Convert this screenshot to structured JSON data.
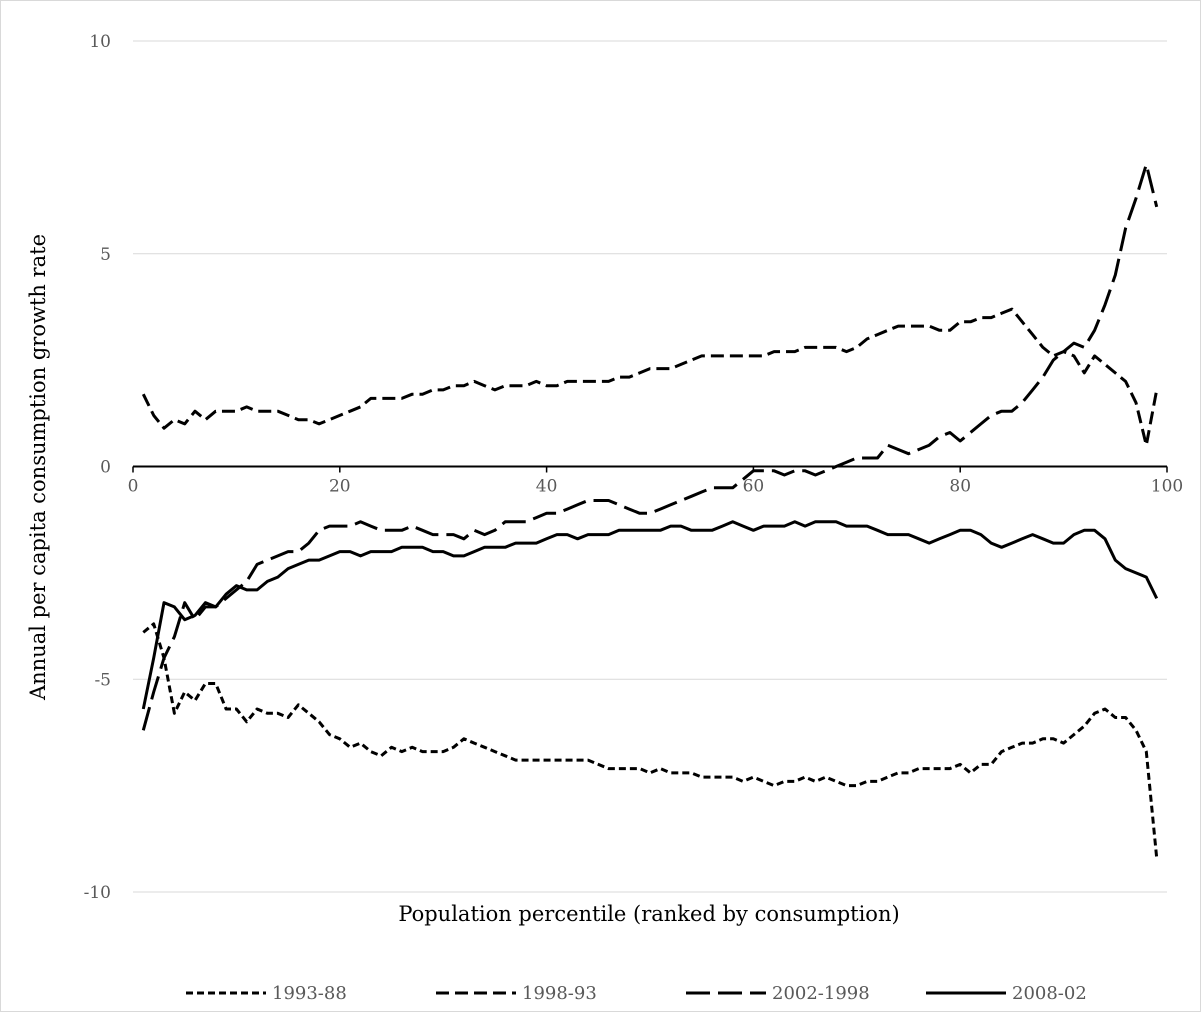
{
  "chart_data": {
    "type": "line",
    "title": "",
    "xlabel": "Population percentile (ranked by consumption)",
    "ylabel": "Annual per capita consumption growth rate",
    "xlim": [
      0,
      100
    ],
    "ylim": [
      -10,
      10
    ],
    "x_ticks": [
      0,
      20,
      40,
      60,
      80,
      100
    ],
    "y_ticks": [
      -10,
      -5,
      0,
      5,
      10
    ],
    "grid": "horizontal",
    "legend_position": "bottom",
    "series": [
      {
        "name": "1993-88",
        "dash": "short",
        "x": [
          1,
          2,
          3,
          4,
          5,
          6,
          7,
          8,
          9,
          10,
          11,
          12,
          13,
          14,
          15,
          16,
          17,
          18,
          19,
          20,
          21,
          22,
          23,
          24,
          25,
          26,
          27,
          28,
          29,
          30,
          31,
          32,
          33,
          34,
          35,
          36,
          37,
          38,
          39,
          40,
          41,
          42,
          43,
          44,
          45,
          46,
          47,
          48,
          49,
          50,
          51,
          52,
          53,
          54,
          55,
          56,
          57,
          58,
          59,
          60,
          61,
          62,
          63,
          64,
          65,
          66,
          67,
          68,
          69,
          70,
          71,
          72,
          73,
          74,
          75,
          76,
          77,
          78,
          79,
          80,
          81,
          82,
          83,
          84,
          85,
          86,
          87,
          88,
          89,
          90,
          91,
          92,
          93,
          94,
          95,
          96,
          97,
          98,
          99
        ],
        "values": [
          -3.9,
          -3.7,
          -4.5,
          -5.8,
          -5.3,
          -5.5,
          -5.1,
          -5.1,
          -5.7,
          -5.7,
          -6.0,
          -5.7,
          -5.8,
          -5.8,
          -5.9,
          -5.6,
          -5.8,
          -6.0,
          -6.3,
          -6.4,
          -6.6,
          -6.5,
          -6.7,
          -6.8,
          -6.6,
          -6.7,
          -6.6,
          -6.7,
          -6.7,
          -6.7,
          -6.6,
          -6.4,
          -6.5,
          -6.6,
          -6.7,
          -6.8,
          -6.9,
          -6.9,
          -6.9,
          -6.9,
          -6.9,
          -6.9,
          -6.9,
          -6.9,
          -7.0,
          -7.1,
          -7.1,
          -7.1,
          -7.1,
          -7.2,
          -7.1,
          -7.2,
          -7.2,
          -7.2,
          -7.3,
          -7.3,
          -7.3,
          -7.3,
          -7.4,
          -7.3,
          -7.4,
          -7.5,
          -7.4,
          -7.4,
          -7.3,
          -7.4,
          -7.3,
          -7.4,
          -7.5,
          -7.5,
          -7.4,
          -7.4,
          -7.3,
          -7.2,
          -7.2,
          -7.1,
          -7.1,
          -7.1,
          -7.1,
          -7.0,
          -7.2,
          -7.0,
          -7.0,
          -6.7,
          -6.6,
          -6.5,
          -6.5,
          -6.4,
          -6.4,
          -6.5,
          -6.3,
          -6.1,
          -5.8,
          -5.7,
          -5.9,
          -5.9,
          -6.2,
          -6.7,
          -9.2
        ]
      },
      {
        "name": "1998-93",
        "dash": "medium",
        "x": [
          1,
          2,
          3,
          4,
          5,
          6,
          7,
          8,
          9,
          10,
          11,
          12,
          13,
          14,
          15,
          16,
          17,
          18,
          19,
          20,
          21,
          22,
          23,
          24,
          25,
          26,
          27,
          28,
          29,
          30,
          31,
          32,
          33,
          34,
          35,
          36,
          37,
          38,
          39,
          40,
          41,
          42,
          43,
          44,
          45,
          46,
          47,
          48,
          49,
          50,
          51,
          52,
          53,
          54,
          55,
          56,
          57,
          58,
          59,
          60,
          61,
          62,
          63,
          64,
          65,
          66,
          67,
          68,
          69,
          70,
          71,
          72,
          73,
          74,
          75,
          76,
          77,
          78,
          79,
          80,
          81,
          82,
          83,
          84,
          85,
          86,
          87,
          88,
          89,
          90,
          91,
          92,
          93,
          94,
          95,
          96,
          97,
          98,
          99
        ],
        "values": [
          1.7,
          1.2,
          0.9,
          1.1,
          1.0,
          1.3,
          1.1,
          1.3,
          1.3,
          1.3,
          1.4,
          1.3,
          1.3,
          1.3,
          1.2,
          1.1,
          1.1,
          1.0,
          1.1,
          1.2,
          1.3,
          1.4,
          1.6,
          1.6,
          1.6,
          1.6,
          1.7,
          1.7,
          1.8,
          1.8,
          1.9,
          1.9,
          2.0,
          1.9,
          1.8,
          1.9,
          1.9,
          1.9,
          2.0,
          1.9,
          1.9,
          2.0,
          2.0,
          2.0,
          2.0,
          2.0,
          2.1,
          2.1,
          2.2,
          2.3,
          2.3,
          2.3,
          2.4,
          2.5,
          2.6,
          2.6,
          2.6,
          2.6,
          2.6,
          2.6,
          2.6,
          2.7,
          2.7,
          2.7,
          2.8,
          2.8,
          2.8,
          2.8,
          2.7,
          2.8,
          3.0,
          3.1,
          3.2,
          3.3,
          3.3,
          3.3,
          3.3,
          3.2,
          3.2,
          3.4,
          3.4,
          3.5,
          3.5,
          3.6,
          3.7,
          3.4,
          3.1,
          2.8,
          2.6,
          2.7,
          2.6,
          2.2,
          2.6,
          2.4,
          2.2,
          2.0,
          1.5,
          0.5,
          1.8
        ]
      },
      {
        "name": "2002-1998",
        "dash": "long",
        "x": [
          1,
          2,
          3,
          4,
          5,
          6,
          7,
          8,
          9,
          10,
          11,
          12,
          13,
          14,
          15,
          16,
          17,
          18,
          19,
          20,
          21,
          22,
          23,
          24,
          25,
          26,
          27,
          28,
          29,
          30,
          31,
          32,
          33,
          34,
          35,
          36,
          37,
          38,
          39,
          40,
          41,
          42,
          43,
          44,
          45,
          46,
          47,
          48,
          49,
          50,
          51,
          52,
          53,
          54,
          55,
          56,
          57,
          58,
          59,
          60,
          61,
          62,
          63,
          64,
          65,
          66,
          67,
          68,
          69,
          70,
          71,
          72,
          73,
          74,
          75,
          76,
          77,
          78,
          79,
          80,
          81,
          82,
          83,
          84,
          85,
          86,
          87,
          88,
          89,
          90,
          91,
          92,
          93,
          94,
          95,
          96,
          97,
          98,
          99
        ],
        "values": [
          -6.2,
          -5.3,
          -4.5,
          -4.0,
          -3.2,
          -3.6,
          -3.3,
          -3.3,
          -3.1,
          -2.9,
          -2.7,
          -2.3,
          -2.2,
          -2.1,
          -2.0,
          -2.0,
          -1.8,
          -1.5,
          -1.4,
          -1.4,
          -1.4,
          -1.3,
          -1.4,
          -1.5,
          -1.5,
          -1.5,
          -1.4,
          -1.5,
          -1.6,
          -1.6,
          -1.6,
          -1.7,
          -1.5,
          -1.6,
          -1.5,
          -1.3,
          -1.3,
          -1.3,
          -1.2,
          -1.1,
          -1.1,
          -1.0,
          -0.9,
          -0.8,
          -0.8,
          -0.8,
          -0.9,
          -1.0,
          -1.1,
          -1.1,
          -1.0,
          -0.9,
          -0.8,
          -0.7,
          -0.6,
          -0.5,
          -0.5,
          -0.5,
          -0.3,
          -0.1,
          -0.1,
          -0.1,
          -0.2,
          -0.1,
          -0.1,
          -0.2,
          -0.1,
          0.0,
          0.1,
          0.2,
          0.2,
          0.2,
          0.5,
          0.4,
          0.3,
          0.4,
          0.5,
          0.7,
          0.8,
          0.6,
          0.8,
          1.0,
          1.2,
          1.3,
          1.3,
          1.5,
          1.8,
          2.1,
          2.5,
          2.7,
          2.9,
          2.8,
          3.2,
          3.8,
          4.5,
          5.6,
          6.3,
          7.1,
          6.1
        ]
      },
      {
        "name": "2008-02",
        "dash": "solid",
        "x": [
          1,
          2,
          3,
          4,
          5,
          6,
          7,
          8,
          9,
          10,
          11,
          12,
          13,
          14,
          15,
          16,
          17,
          18,
          19,
          20,
          21,
          22,
          23,
          24,
          25,
          26,
          27,
          28,
          29,
          30,
          31,
          32,
          33,
          34,
          35,
          36,
          37,
          38,
          39,
          40,
          41,
          42,
          43,
          44,
          45,
          46,
          47,
          48,
          49,
          50,
          51,
          52,
          53,
          54,
          55,
          56,
          57,
          58,
          59,
          60,
          61,
          62,
          63,
          64,
          65,
          66,
          67,
          68,
          69,
          70,
          71,
          72,
          73,
          74,
          75,
          76,
          77,
          78,
          79,
          80,
          81,
          82,
          83,
          84,
          85,
          86,
          87,
          88,
          89,
          90,
          91,
          92,
          93,
          94,
          95,
          96,
          97,
          98,
          99
        ],
        "values": [
          -5.7,
          -4.5,
          -3.2,
          -3.3,
          -3.6,
          -3.5,
          -3.2,
          -3.3,
          -3.0,
          -2.8,
          -2.9,
          -2.9,
          -2.7,
          -2.6,
          -2.4,
          -2.3,
          -2.2,
          -2.2,
          -2.1,
          -2.0,
          -2.0,
          -2.1,
          -2.0,
          -2.0,
          -2.0,
          -1.9,
          -1.9,
          -1.9,
          -2.0,
          -2.0,
          -2.1,
          -2.1,
          -2.0,
          -1.9,
          -1.9,
          -1.9,
          -1.8,
          -1.8,
          -1.8,
          -1.7,
          -1.6,
          -1.6,
          -1.7,
          -1.6,
          -1.6,
          -1.6,
          -1.5,
          -1.5,
          -1.5,
          -1.5,
          -1.5,
          -1.4,
          -1.4,
          -1.5,
          -1.5,
          -1.5,
          -1.4,
          -1.3,
          -1.4,
          -1.5,
          -1.4,
          -1.4,
          -1.4,
          -1.3,
          -1.4,
          -1.3,
          -1.3,
          -1.3,
          -1.4,
          -1.4,
          -1.4,
          -1.5,
          -1.6,
          -1.6,
          -1.6,
          -1.7,
          -1.8,
          -1.7,
          -1.6,
          -1.5,
          -1.5,
          -1.6,
          -1.8,
          -1.9,
          -1.8,
          -1.7,
          -1.6,
          -1.7,
          -1.8,
          -1.8,
          -1.6,
          -1.5,
          -1.5,
          -1.7,
          -2.2,
          -2.4,
          -2.5,
          -2.6,
          -3.1
        ]
      }
    ]
  }
}
